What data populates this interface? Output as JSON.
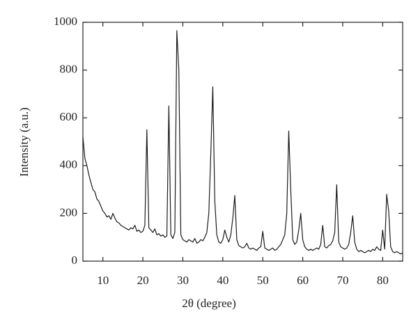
{
  "chart_data": {
    "type": "line",
    "x_label": "2θ (degree)",
    "y_label": "Intensity (a.u.)",
    "xlim": [
      5,
      85
    ],
    "xticks": [
      10,
      20,
      30,
      40,
      50,
      60,
      70,
      80
    ],
    "ylim": [
      0,
      1000
    ],
    "yticks": [
      0,
      200,
      400,
      600,
      800,
      1000
    ],
    "grid": false,
    "x": [
      5,
      5.5,
      6,
      6.5,
      7,
      7.5,
      8,
      8.5,
      9,
      9.5,
      10,
      10.5,
      11,
      11.5,
      12,
      12.5,
      13,
      13.5,
      14,
      14.5,
      15,
      15.5,
      16,
      16.5,
      17,
      17.5,
      18,
      18.5,
      19,
      19.5,
      20,
      20.5,
      21,
      21.5,
      22,
      22.5,
      23,
      23.5,
      24,
      24.5,
      25,
      25.5,
      26,
      26.5,
      27,
      27.5,
      28,
      28.5,
      29,
      29.5,
      30,
      30.5,
      31,
      31.5,
      32,
      32.5,
      33,
      33.5,
      34,
      34.5,
      35,
      35.5,
      36,
      36.5,
      37,
      37.5,
      38,
      38.5,
      39,
      39.5,
      40,
      40.5,
      41,
      41.5,
      42,
      42.5,
      43,
      43.5,
      44,
      44.5,
      45,
      45.5,
      46,
      46.5,
      47,
      47.5,
      48,
      48.5,
      49,
      49.5,
      50,
      50.5,
      51,
      51.5,
      52,
      52.5,
      53,
      53.5,
      54,
      54.5,
      55,
      55.5,
      56,
      56.5,
      57,
      57.5,
      58,
      58.5,
      59,
      59.5,
      60,
      60.5,
      61,
      61.5,
      62,
      62.5,
      63,
      63.5,
      64,
      64.5,
      65,
      65.5,
      66,
      66.5,
      67,
      67.5,
      68,
      68.5,
      69,
      69.5,
      70,
      70.5,
      71,
      71.5,
      72,
      72.5,
      73,
      73.5,
      74,
      74.5,
      75,
      75.5,
      76,
      76.5,
      77,
      77.5,
      78,
      78.5,
      79,
      79.5,
      80,
      80.5,
      81,
      81.5,
      82,
      82.5,
      83,
      83.5,
      84,
      84.5,
      85
    ],
    "series": [
      {
        "color": "#1a1a1a",
        "values": [
          520,
          430,
          400,
          360,
          330,
          300,
          290,
          260,
          250,
          230,
          210,
          200,
          185,
          190,
          175,
          200,
          180,
          165,
          160,
          150,
          145,
          140,
          135,
          130,
          140,
          135,
          150,
          125,
          130,
          120,
          125,
          150,
          550,
          140,
          130,
          120,
          135,
          110,
          115,
          105,
          110,
          100,
          105,
          650,
          110,
          95,
          120,
          965,
          800,
          110,
          90,
          85,
          80,
          90,
          85,
          80,
          95,
          75,
          80,
          90,
          85,
          100,
          120,
          200,
          450,
          730,
          250,
          110,
          80,
          75,
          90,
          130,
          100,
          80,
          110,
          180,
          275,
          90,
          65,
          60,
          55,
          60,
          75,
          55,
          50,
          55,
          50,
          45,
          55,
          60,
          125,
          55,
          50,
          45,
          50,
          55,
          45,
          50,
          60,
          70,
          90,
          110,
          200,
          545,
          300,
          90,
          70,
          80,
          130,
          200,
          90,
          60,
          50,
          45,
          50,
          45,
          50,
          55,
          50,
          70,
          150,
          60,
          55,
          65,
          70,
          85,
          120,
          320,
          80,
          60,
          55,
          50,
          55,
          70,
          120,
          190,
          80,
          50,
          40,
          45,
          40,
          35,
          40,
          45,
          40,
          50,
          45,
          60,
          50,
          45,
          130,
          50,
          280,
          210,
          60,
          40,
          35,
          40,
          35,
          30,
          35
        ]
      }
    ]
  }
}
